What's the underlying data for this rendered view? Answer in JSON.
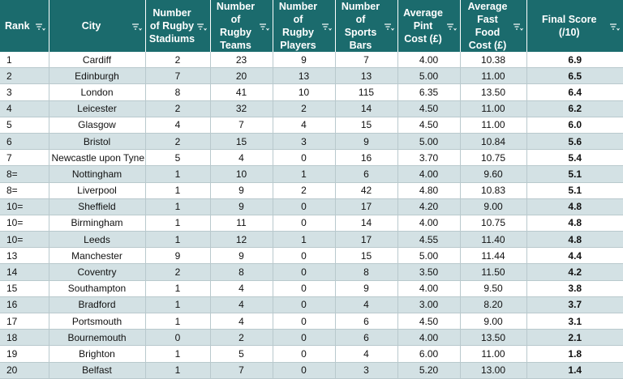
{
  "headers": {
    "rank": "Rank",
    "city": "City",
    "stadiums": "Number of Rugby Stadiums",
    "teams": "Number of Rugby Teams",
    "players": "Number of Rugby Players",
    "bars": "Number of Sports Bars",
    "pint": "Average Pint Cost (£)",
    "food": "Average Fast Food Cost (£)",
    "score": "Final Score (/10)"
  },
  "filter_icon": "filter-dropdown-icon",
  "colors": {
    "header_bg": "#1b6b6d",
    "band_bg": "#d3e1e4"
  },
  "rows": [
    {
      "rank": "1",
      "city": "Cardiff",
      "stadiums": "2",
      "teams": "23",
      "players": "9",
      "bars": "7",
      "pint": "4.00",
      "food": "10.38",
      "score": "6.9"
    },
    {
      "rank": "2",
      "city": "Edinburgh",
      "stadiums": "7",
      "teams": "20",
      "players": "13",
      "bars": "13",
      "pint": "5.00",
      "food": "11.00",
      "score": "6.5"
    },
    {
      "rank": "3",
      "city": "London",
      "stadiums": "8",
      "teams": "41",
      "players": "10",
      "bars": "115",
      "pint": "6.35",
      "food": "13.50",
      "score": "6.4"
    },
    {
      "rank": "4",
      "city": "Leicester",
      "stadiums": "2",
      "teams": "32",
      "players": "2",
      "bars": "14",
      "pint": "4.50",
      "food": "11.00",
      "score": "6.2"
    },
    {
      "rank": "5",
      "city": "Glasgow",
      "stadiums": "4",
      "teams": "7",
      "players": "4",
      "bars": "15",
      "pint": "4.50",
      "food": "11.00",
      "score": "6.0"
    },
    {
      "rank": "6",
      "city": "Bristol",
      "stadiums": "2",
      "teams": "15",
      "players": "3",
      "bars": "9",
      "pint": "5.00",
      "food": "10.84",
      "score": "5.6"
    },
    {
      "rank": "7",
      "city": "Newcastle upon Tyne",
      "stadiums": "5",
      "teams": "4",
      "players": "0",
      "bars": "16",
      "pint": "3.70",
      "food": "10.75",
      "score": "5.4"
    },
    {
      "rank": "8=",
      "city": "Nottingham",
      "stadiums": "1",
      "teams": "10",
      "players": "1",
      "bars": "6",
      "pint": "4.00",
      "food": "9.60",
      "score": "5.1"
    },
    {
      "rank": "8=",
      "city": "Liverpool",
      "stadiums": "1",
      "teams": "9",
      "players": "2",
      "bars": "42",
      "pint": "4.80",
      "food": "10.83",
      "score": "5.1"
    },
    {
      "rank": "10=",
      "city": "Sheffield",
      "stadiums": "1",
      "teams": "9",
      "players": "0",
      "bars": "17",
      "pint": "4.20",
      "food": "9.00",
      "score": "4.8"
    },
    {
      "rank": "10=",
      "city": "Birmingham",
      "stadiums": "1",
      "teams": "11",
      "players": "0",
      "bars": "14",
      "pint": "4.00",
      "food": "10.75",
      "score": "4.8"
    },
    {
      "rank": "10=",
      "city": "Leeds",
      "stadiums": "1",
      "teams": "12",
      "players": "1",
      "bars": "17",
      "pint": "4.55",
      "food": "11.40",
      "score": "4.8"
    },
    {
      "rank": "13",
      "city": "Manchester",
      "stadiums": "9",
      "teams": "9",
      "players": "0",
      "bars": "15",
      "pint": "5.00",
      "food": "11.44",
      "score": "4.4"
    },
    {
      "rank": "14",
      "city": "Coventry",
      "stadiums": "2",
      "teams": "8",
      "players": "0",
      "bars": "8",
      "pint": "3.50",
      "food": "11.50",
      "score": "4.2"
    },
    {
      "rank": "15",
      "city": "Southampton",
      "stadiums": "1",
      "teams": "4",
      "players": "0",
      "bars": "9",
      "pint": "4.00",
      "food": "9.50",
      "score": "3.8"
    },
    {
      "rank": "16",
      "city": "Bradford",
      "stadiums": "1",
      "teams": "4",
      "players": "0",
      "bars": "4",
      "pint": "3.00",
      "food": "8.20",
      "score": "3.7"
    },
    {
      "rank": "17",
      "city": "Portsmouth",
      "stadiums": "1",
      "teams": "4",
      "players": "0",
      "bars": "6",
      "pint": "4.50",
      "food": "9.00",
      "score": "3.1"
    },
    {
      "rank": "18",
      "city": "Bournemouth",
      "stadiums": "0",
      "teams": "2",
      "players": "0",
      "bars": "6",
      "pint": "4.00",
      "food": "13.50",
      "score": "2.1"
    },
    {
      "rank": "19",
      "city": "Brighton",
      "stadiums": "1",
      "teams": "5",
      "players": "0",
      "bars": "4",
      "pint": "6.00",
      "food": "11.00",
      "score": "1.8"
    },
    {
      "rank": "20",
      "city": "Belfast",
      "stadiums": "1",
      "teams": "7",
      "players": "0",
      "bars": "3",
      "pint": "5.20",
      "food": "13.00",
      "score": "1.4"
    }
  ]
}
